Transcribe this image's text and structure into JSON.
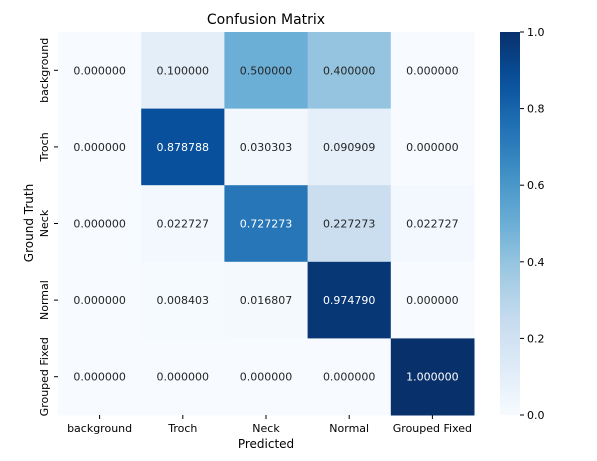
{
  "chart_data": {
    "type": "heatmap",
    "title": "Confusion Matrix",
    "xlabel": "Predicted",
    "ylabel": "Ground Truth",
    "x_categories": [
      "background",
      "Troch",
      "Neck",
      "Normal",
      "Grouped Fixed"
    ],
    "y_categories": [
      "background",
      "Troch",
      "Neck",
      "Normal",
      "Grouped Fixed"
    ],
    "values": [
      [
        0.0,
        0.1,
        0.5,
        0.4,
        0.0
      ],
      [
        0.0,
        0.878788,
        0.030303,
        0.090909,
        0.0
      ],
      [
        0.0,
        0.022727,
        0.727273,
        0.227273,
        0.022727
      ],
      [
        0.0,
        0.008403,
        0.016807,
        0.97479,
        0.0
      ],
      [
        0.0,
        0.0,
        0.0,
        0.0,
        1.0
      ]
    ],
    "cell_labels": [
      [
        "0.000000",
        "0.100000",
        "0.500000",
        "0.400000",
        "0.000000"
      ],
      [
        "0.000000",
        "0.878788",
        "0.030303",
        "0.090909",
        "0.000000"
      ],
      [
        "0.000000",
        "0.022727",
        "0.727273",
        "0.227273",
        "0.022727"
      ],
      [
        "0.000000",
        "0.008403",
        "0.016807",
        "0.974790",
        "0.000000"
      ],
      [
        "0.000000",
        "0.000000",
        "0.000000",
        "0.000000",
        "1.000000"
      ]
    ],
    "value_range": [
      0.0,
      1.0
    ],
    "colormap": "Blues",
    "colorbar_ticks": [
      {
        "value": 0.0,
        "label": "0.0"
      },
      {
        "value": 0.2,
        "label": "0.2"
      },
      {
        "value": 0.4,
        "label": "0.4"
      },
      {
        "value": 0.6,
        "label": "0.6"
      },
      {
        "value": 0.8,
        "label": "0.8"
      },
      {
        "value": 1.0,
        "label": "1.0"
      }
    ],
    "grid": false
  }
}
